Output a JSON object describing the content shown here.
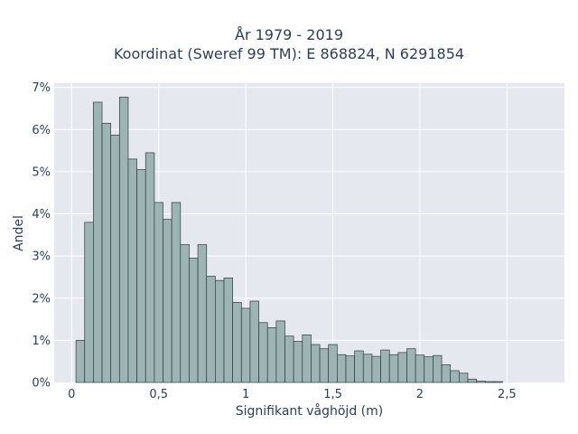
{
  "chart_data": {
    "type": "bar",
    "title_lines": [
      "År 1979 - 2019",
      "Koordinat (Sweref 99 TM): E 868824, N 6291854"
    ],
    "xlabel": "Signifikant våghöjd (m)",
    "ylabel": "Andel",
    "xlim": [
      -0.1,
      2.83
    ],
    "ylim": [
      0,
      7.1
    ],
    "x_ticks": [
      {
        "value": 0,
        "label": "0"
      },
      {
        "value": 0.5,
        "label": "0,5"
      },
      {
        "value": 1,
        "label": "1"
      },
      {
        "value": 1.5,
        "label": "1,5"
      },
      {
        "value": 2,
        "label": "2"
      },
      {
        "value": 2.5,
        "label": "2,5"
      }
    ],
    "y_ticks": [
      {
        "value": 0,
        "label": "0%"
      },
      {
        "value": 1,
        "label": "1%"
      },
      {
        "value": 2,
        "label": "2%"
      },
      {
        "value": 3,
        "label": "3%"
      },
      {
        "value": 4,
        "label": "4%"
      },
      {
        "value": 5,
        "label": "5%"
      },
      {
        "value": 6,
        "label": "6%"
      },
      {
        "value": 7,
        "label": "7%"
      }
    ],
    "grid": true,
    "bin_start": 0.025,
    "bin_width": 0.05,
    "values": [
      1.0,
      3.8,
      6.65,
      6.15,
      5.87,
      6.77,
      5.3,
      5.05,
      5.45,
      4.27,
      3.87,
      4.27,
      3.27,
      2.95,
      3.27,
      2.52,
      2.42,
      2.48,
      1.9,
      1.76,
      1.93,
      1.42,
      1.3,
      1.46,
      1.1,
      0.98,
      1.13,
      0.9,
      0.8,
      0.9,
      0.66,
      0.63,
      0.75,
      0.67,
      0.62,
      0.77,
      0.66,
      0.71,
      0.8,
      0.65,
      0.61,
      0.64,
      0.42,
      0.28,
      0.22,
      0.08,
      0.03,
      0.02,
      0.02
    ],
    "colors": {
      "plot_bg": "#e5e8ef",
      "grid": "#ffffff",
      "bar_fill": "#9db4b4",
      "bar_stroke": "#2f3b3b",
      "text": "#2a3f5f"
    }
  }
}
